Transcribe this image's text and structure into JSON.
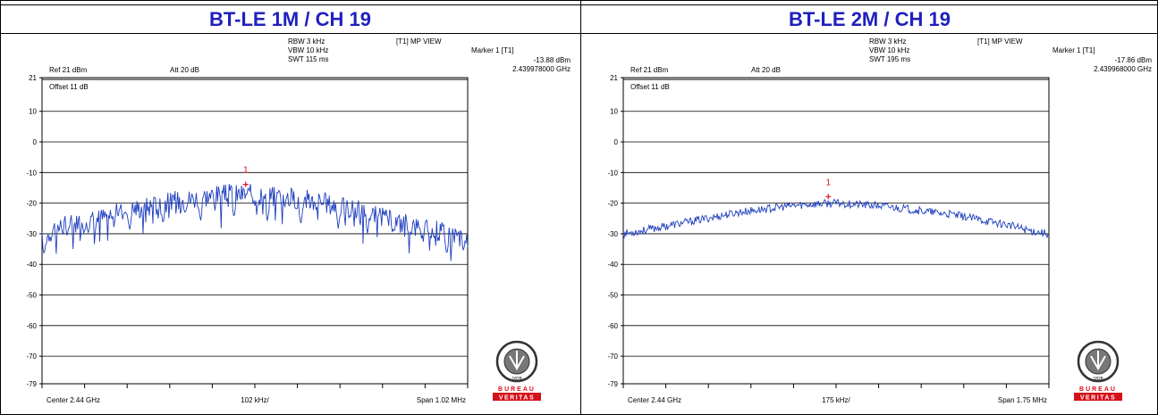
{
  "panels": [
    {
      "title": "BT-LE 1M / CH 19",
      "rbw": "RBW 3 kHz",
      "vbw": "VBW 10 kHz",
      "swt": "SWT 115 ms",
      "mode": "[T1] MP VIEW",
      "marker_title": "Marker 1 [T1]",
      "marker_level": "-13.88 dBm",
      "marker_freq": "2.439978000 GHz",
      "ref": "Ref 21 dBm",
      "att": "Att  20 dB",
      "offset": "Offset 11 dB",
      "center": "Center 2.44 GHz",
      "per_div": "102 kHz/",
      "span": "Span 1.02 MHz",
      "marker_label": "1"
    },
    {
      "title": "BT-LE 2M / CH 19",
      "rbw": "RBW 3 kHz",
      "vbw": "VBW 10 kHz",
      "swt": "SWT 195 ms",
      "mode": "[T1] MP VIEW",
      "marker_title": "Marker 1 [T1]",
      "marker_level": "-17.86 dBm",
      "marker_freq": "2.439968000 GHz",
      "ref": "Ref 21 dBm",
      "att": "Att  20 dB",
      "offset": "Offset 11 dB",
      "center": "Center 2.44 GHz",
      "per_div": "175 kHz/",
      "span": "Span 1.75 MHz",
      "marker_label": "1"
    }
  ],
  "logo": {
    "seal_text": "BUREAU VERITAS",
    "year": "1828",
    "word1": "BUREAU",
    "word2": "VERITAS"
  },
  "colors": {
    "title": "#1f1fbf",
    "trace": "#1f3fbf",
    "marker": "#e01010",
    "logo_red": "#d4101a"
  },
  "chart_data": [
    {
      "type": "line",
      "title": "BT-LE 1M / CH 19",
      "xlabel": "",
      "ylabel": "",
      "y_ticks": [
        21,
        10,
        0,
        -10,
        -20,
        -30,
        -40,
        -50,
        -60,
        -70,
        -79
      ],
      "ylim": [
        -79,
        21
      ],
      "x_range_mhz": [
        -0.51,
        0.51
      ],
      "x_div": 10,
      "grid": "horizontal",
      "marker": {
        "x_mhz": -0.022,
        "y": -13.88
      },
      "envelope": {
        "x": [
          -0.51,
          -0.48,
          -0.45,
          -0.4,
          -0.35,
          -0.3,
          -0.25,
          -0.2,
          -0.15,
          -0.1,
          -0.05,
          0.0,
          0.05,
          0.1,
          0.15,
          0.2,
          0.25,
          0.3,
          0.35,
          0.4,
          0.45,
          0.51
        ],
        "y": [
          -32,
          -28,
          -27,
          -26,
          -24,
          -22,
          -21,
          -19.5,
          -18.5,
          -17.5,
          -17,
          -17.2,
          -17.8,
          -18.5,
          -19.5,
          -21,
          -22.5,
          -24.5,
          -26.5,
          -28,
          -29,
          -31
        ]
      },
      "dips": {
        "x": [
          -0.505,
          -0.45,
          -0.4,
          -0.3,
          -0.22,
          -0.13,
          -0.05,
          0.03,
          0.11,
          0.2,
          0.27,
          0.33,
          0.4,
          0.46,
          0.5
        ],
        "y": [
          -37,
          -31,
          -30,
          -29,
          -27,
          -26,
          -25,
          -26,
          -27,
          -28,
          -30,
          -30,
          -32,
          -37,
          -36
        ]
      },
      "series": [
        {
          "noise": 3.5
        }
      ]
    },
    {
      "type": "line",
      "title": "BT-LE 2M / CH 19",
      "xlabel": "",
      "ylabel": "",
      "y_ticks": [
        21,
        10,
        0,
        -10,
        -20,
        -30,
        -40,
        -50,
        -60,
        -70,
        -79
      ],
      "ylim": [
        -79,
        21
      ],
      "x_range_mhz": [
        -0.875,
        0.875
      ],
      "x_div": 10,
      "grid": "horizontal",
      "marker": {
        "x_mhz": -0.032,
        "y": -17.86
      },
      "envelope": {
        "x": [
          -0.875,
          -0.8,
          -0.7,
          -0.6,
          -0.5,
          -0.4,
          -0.3,
          -0.2,
          -0.1,
          0.0,
          0.1,
          0.2,
          0.3,
          0.4,
          0.5,
          0.6,
          0.7,
          0.8,
          0.875
        ],
        "y": [
          -30,
          -29,
          -27.5,
          -26,
          -24.5,
          -23,
          -22,
          -21,
          -20.3,
          -20,
          -20.5,
          -21,
          -22,
          -23,
          -24,
          -25.5,
          -27,
          -29,
          -30
        ]
      },
      "dips": {
        "x": [],
        "y": []
      },
      "series": [
        {
          "noise": 1.3
        }
      ]
    }
  ]
}
